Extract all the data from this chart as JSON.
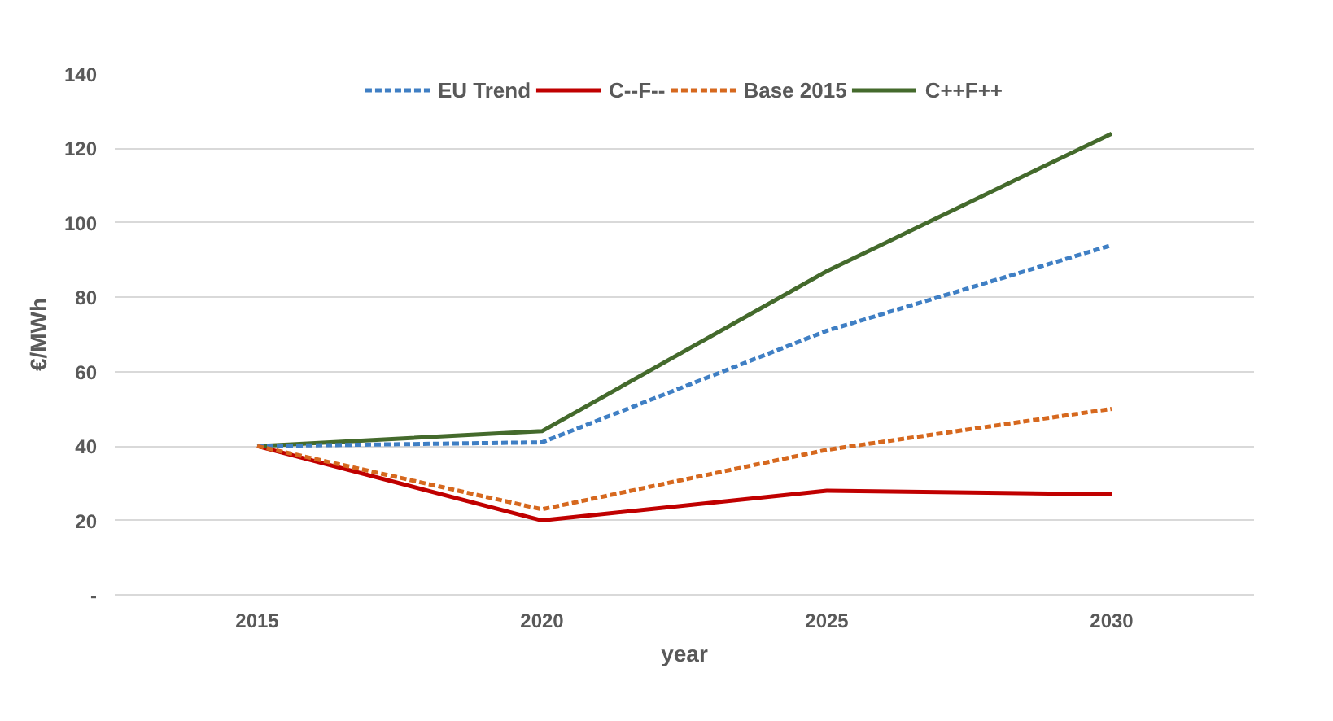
{
  "chart_data": {
    "type": "line",
    "xlabel": "year",
    "ylabel": "€/MWh",
    "categories": [
      "2015",
      "2020",
      "2025",
      "2030"
    ],
    "series": [
      {
        "name": "EU Trend",
        "color": "#3f7fc4",
        "line_style": "dashed",
        "values": [
          40,
          41,
          71,
          94
        ]
      },
      {
        "name": "C--F--",
        "color": "#c00000",
        "line_style": "solid",
        "values": [
          40,
          20,
          28,
          27
        ]
      },
      {
        "name": "Base 2015",
        "color": "#d6681e",
        "line_style": "dashed",
        "values": [
          40,
          23,
          39,
          50
        ]
      },
      {
        "name": "C++F++",
        "color": "#446a2c",
        "line_style": "solid",
        "values": [
          40,
          44,
          87,
          124
        ]
      }
    ],
    "ylim": [
      0,
      140
    ],
    "yticks": [
      {
        "value": 0,
        "label": "-"
      },
      20,
      40,
      60,
      80,
      100,
      120,
      140
    ],
    "grid": "y",
    "legend": "top",
    "marker": "none"
  }
}
